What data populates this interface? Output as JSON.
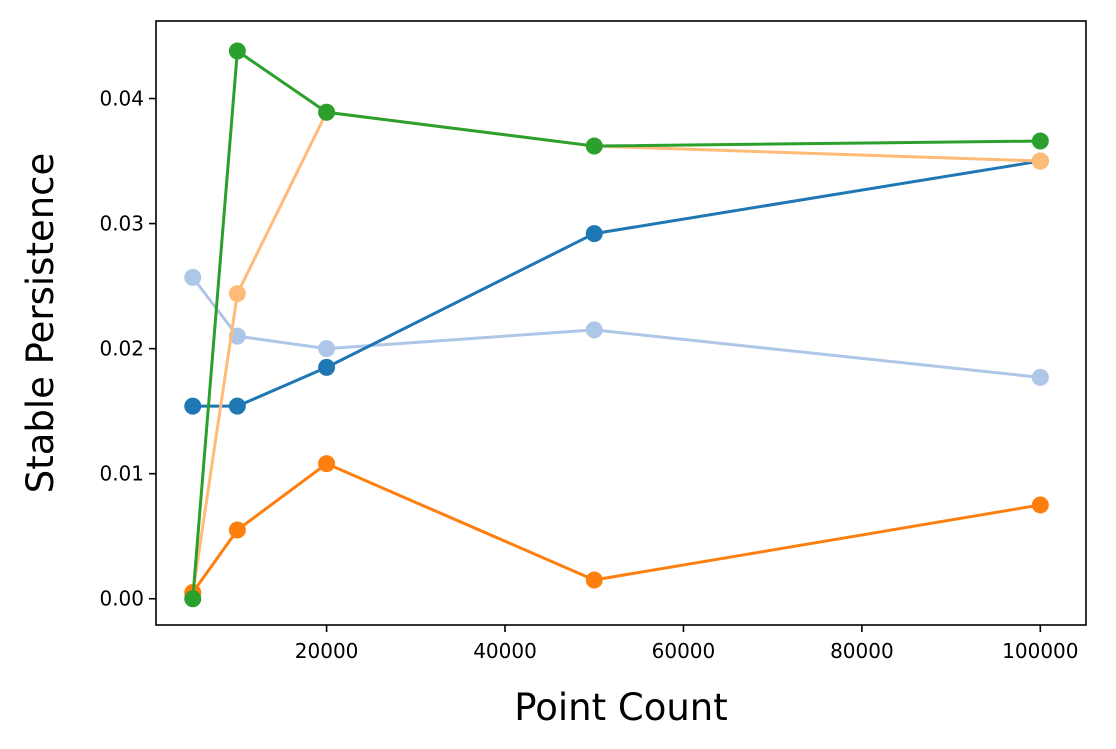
{
  "chart_data": {
    "type": "line",
    "title": "",
    "xlabel": "Point Count",
    "ylabel": "Stable Persistence",
    "xlim": [
      880,
      105120
    ],
    "ylim": [
      -0.0021,
      0.0462
    ],
    "xticks": [
      20000,
      40000,
      60000,
      80000,
      100000
    ],
    "xtick_labels": [
      "20000",
      "40000",
      "60000",
      "80000",
      "100000"
    ],
    "yticks": [
      0.0,
      0.01,
      0.02,
      0.03,
      0.04
    ],
    "ytick_labels": [
      "0.00",
      "0.01",
      "0.02",
      "0.03",
      "0.04"
    ],
    "grid": false,
    "legend": "none",
    "x": [
      5000,
      10000,
      20000,
      50000,
      100000
    ],
    "series": [
      {
        "color": "#aec7e8",
        "values": [
          0.0257,
          0.021,
          0.02,
          0.0215,
          0.0177
        ]
      },
      {
        "color": "#1f77b4",
        "values": [
          0.0154,
          0.0154,
          0.0185,
          0.0292,
          0.035
        ]
      },
      {
        "color": "#ffbb78",
        "values": [
          0.0004,
          0.0244,
          0.0389,
          0.0362,
          0.035
        ]
      },
      {
        "color": "#ff7f0e",
        "values": [
          0.0005,
          0.0055,
          0.0108,
          0.0015,
          0.0075
        ]
      },
      {
        "color": "#2ca02c",
        "values": [
          0.0,
          0.0438,
          0.0389,
          0.0362,
          0.0366
        ]
      }
    ]
  }
}
